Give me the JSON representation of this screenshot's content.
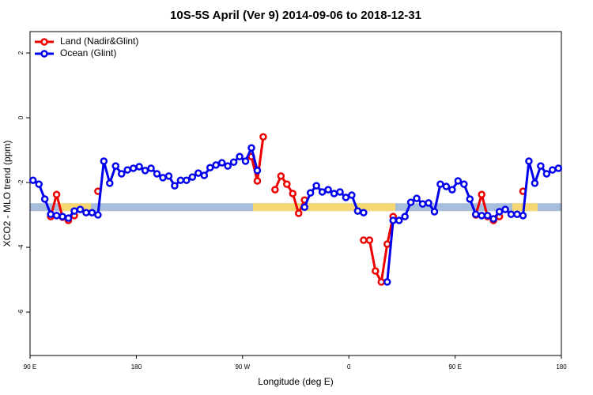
{
  "chart_data": {
    "type": "line",
    "title": "10S-5S April (Ver 9)   2014-09-06 to 2018-12-31",
    "x_label": "Longitude (deg E)",
    "y_label": "XCO2 - MLO trend (ppm)",
    "xlim": [
      90,
      540
    ],
    "xticks": [
      {
        "value": 90,
        "label": "90 E"
      },
      180,
      {
        "value": 270,
        "label": "90 W"
      },
      {
        "value": 360,
        "label": "0"
      },
      {
        "value": 450,
        "label": "90 E"
      },
      {
        "value": 540,
        "label": "180"
      }
    ],
    "ylim": [
      -7.34,
      2.66
    ],
    "yticks": [
      -6,
      -4,
      -2,
      0,
      2
    ],
    "legend": "top-left",
    "surface_band": {
      "y": -2.76,
      "ocean_color": "#a6bddb",
      "land_color": "#f7d774",
      "land_spans": [
        [
          114.8,
          141.6
        ],
        [
          278.8,
          399.4
        ],
        [
          498.5,
          519.9
        ]
      ]
    },
    "x": [
      92.5,
      97.5,
      102.5,
      107.5,
      112.5,
      117.5,
      122.5,
      127.5,
      132.5,
      137.5,
      142.5,
      147.5,
      152.5,
      157.5,
      162.5,
      167.5,
      172.5,
      177.5,
      182.5,
      187.5,
      192.5,
      197.5,
      202.5,
      207.5,
      212.5,
      217.5,
      222.5,
      227.5,
      232.5,
      237.5,
      242.5,
      247.5,
      252.5,
      257.5,
      262.5,
      267.5,
      272.5,
      277.5,
      282.5,
      287.5,
      292.5,
      297.5,
      302.5,
      307.5,
      312.5,
      317.5,
      322.5,
      327.5,
      332.5,
      337.5,
      342.5,
      347.5,
      352.5,
      357.5,
      362.5,
      367.5,
      372.5,
      377.5,
      382.5,
      387.5,
      392.5,
      397.5,
      402.5,
      407.5,
      412.5,
      417.5,
      422.5,
      427.5,
      432.5,
      437.5,
      442.5,
      447.5,
      452.5,
      457.5,
      462.5,
      467.5,
      472.5,
      477.5,
      482.5,
      487.5,
      492.5,
      497.5,
      502.5,
      507.5,
      512.5,
      517.5,
      522.5,
      527.5,
      532.5,
      537.5
    ],
    "series": [
      {
        "name": "Land (Nadir&Glint)",
        "color": "#ee0000",
        "values": [
          null,
          null,
          null,
          -3.05,
          -2.37,
          -3.07,
          -3.17,
          -3.02,
          null,
          null,
          null,
          -2.27,
          null,
          null,
          null,
          null,
          null,
          null,
          null,
          null,
          null,
          null,
          null,
          null,
          null,
          null,
          null,
          null,
          null,
          null,
          null,
          null,
          null,
          null,
          null,
          null,
          null,
          -1.2,
          -1.95,
          -0.59,
          null,
          -2.22,
          -1.8,
          -2.05,
          -2.34,
          -2.95,
          -2.54,
          null,
          null,
          null,
          null,
          null,
          null,
          null,
          null,
          null,
          -3.78,
          -3.78,
          -4.73,
          -5.07,
          -3.9,
          -3.05,
          null,
          null,
          null,
          null,
          null,
          null,
          null,
          null,
          null,
          null,
          null,
          null,
          null,
          -3.0,
          -2.37,
          -3.05,
          -3.17,
          -3.05,
          null,
          null,
          null,
          -2.27,
          null,
          null,
          null,
          null,
          null,
          null
        ]
      },
      {
        "name": "Ocean (Glint)",
        "color": "#0000ee",
        "values": [
          -1.93,
          -2.05,
          -2.51,
          -2.98,
          -3.02,
          -3.05,
          -3.1,
          -2.88,
          -2.83,
          -2.93,
          -2.93,
          -3.0,
          -1.34,
          -2.02,
          -1.49,
          -1.73,
          -1.61,
          -1.56,
          -1.51,
          -1.63,
          -1.56,
          -1.73,
          -1.85,
          -1.8,
          -2.1,
          -1.93,
          -1.93,
          -1.83,
          -1.71,
          -1.78,
          -1.54,
          -1.46,
          -1.39,
          -1.49,
          -1.37,
          -1.2,
          -1.34,
          -0.93,
          -1.63,
          null,
          null,
          null,
          null,
          null,
          null,
          null,
          -2.76,
          -2.32,
          -2.1,
          -2.29,
          -2.22,
          -2.34,
          -2.29,
          -2.46,
          -2.39,
          -2.88,
          -2.93,
          null,
          null,
          null,
          -5.07,
          -3.17,
          -3.17,
          -3.05,
          -2.61,
          -2.49,
          -2.66,
          -2.63,
          -2.9,
          -2.05,
          -2.12,
          -2.22,
          -1.95,
          -2.05,
          -2.51,
          -2.98,
          -3.02,
          -3.02,
          -3.12,
          -2.9,
          -2.83,
          -2.98,
          -2.98,
          -3.02,
          -1.34,
          -2.02,
          -1.49,
          -1.73,
          -1.61,
          -1.56
        ]
      }
    ]
  }
}
